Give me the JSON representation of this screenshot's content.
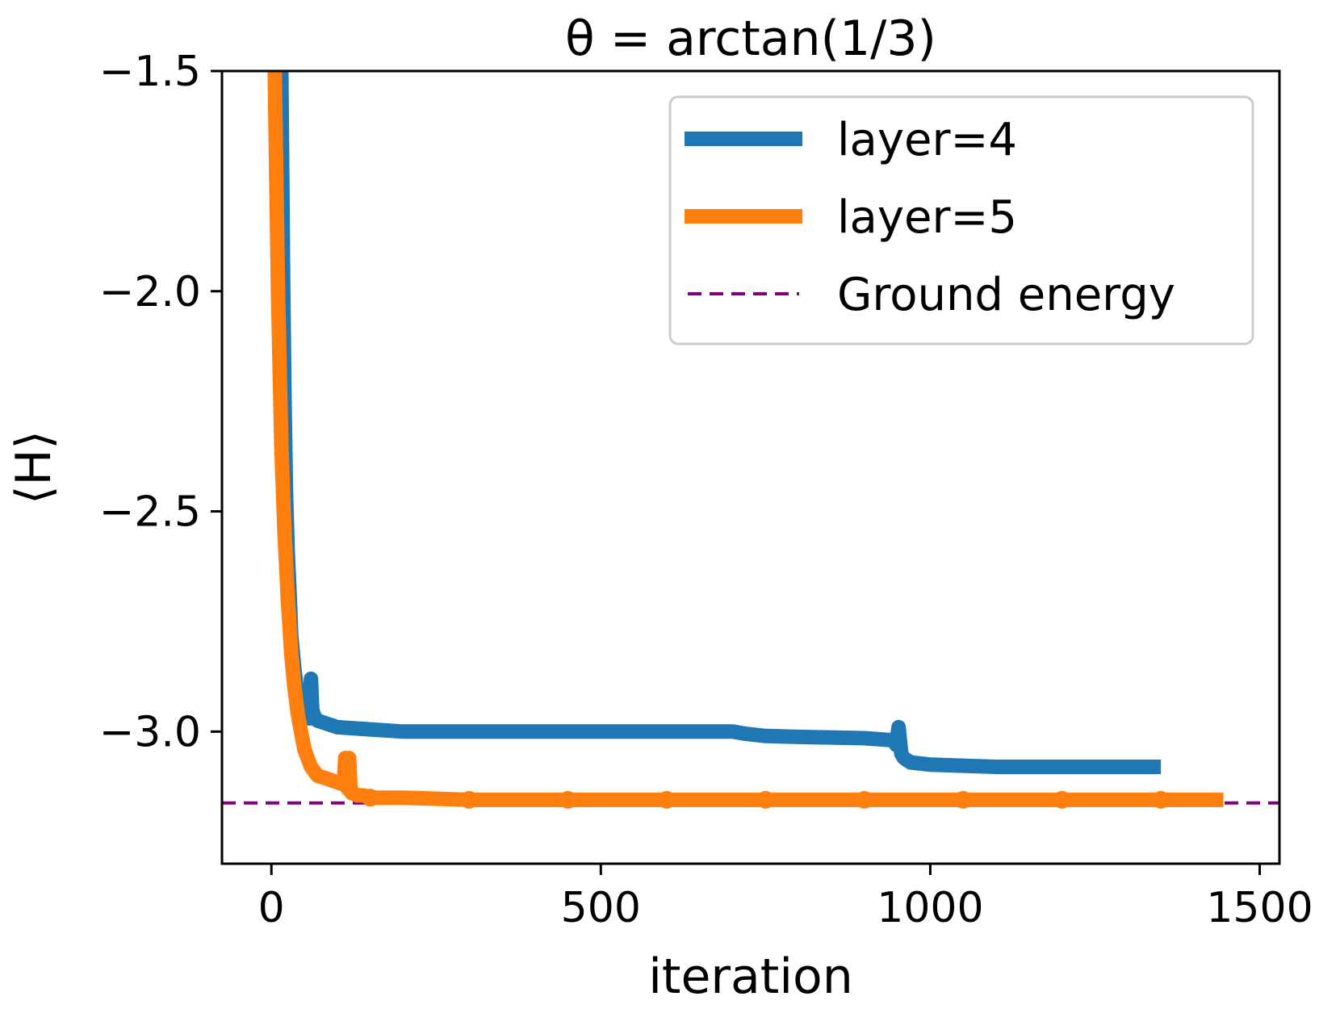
{
  "chart_data": {
    "type": "line",
    "title": "θ = arctan(1/3)",
    "xlabel": "iteration",
    "ylabel": "⟨H⟩",
    "xlim": [
      -75,
      1530
    ],
    "ylim": [
      -3.3,
      -1.5
    ],
    "xticks": [
      0,
      500,
      1000,
      1500
    ],
    "yticks": [
      -1.5,
      -2.0,
      -2.5,
      -3.0
    ],
    "xtick_labels": [
      "0",
      "500",
      "1000",
      "1500"
    ],
    "ytick_labels": [
      "−1.5",
      "−2.0",
      "−2.5",
      "−3.0"
    ],
    "grid": false,
    "legend_position": "top-right",
    "series": [
      {
        "name": "layer=4",
        "label": "layer=4",
        "color": "#1f77b4",
        "style": "solid",
        "x": [
          15,
          18,
          20,
          22,
          25,
          28,
          30,
          35,
          40,
          45,
          50,
          55,
          58,
          60,
          62,
          65,
          70,
          80,
          100,
          150,
          200,
          400,
          700,
          720,
          750,
          800,
          900,
          945,
          948,
          952,
          956,
          960,
          965,
          970,
          1000,
          1100,
          1200,
          1350
        ],
        "y": [
          -1.5,
          -2.0,
          -2.25,
          -2.45,
          -2.6,
          -2.7,
          -2.78,
          -2.86,
          -2.92,
          -2.95,
          -2.96,
          -2.965,
          -2.97,
          -2.88,
          -2.95,
          -2.965,
          -2.975,
          -2.98,
          -2.99,
          -2.995,
          -3.0,
          -3.0,
          -3.0,
          -3.005,
          -3.01,
          -3.012,
          -3.015,
          -3.02,
          -3.03,
          -2.99,
          -3.05,
          -3.06,
          -3.065,
          -3.07,
          -3.075,
          -3.08,
          -3.08,
          -3.08
        ]
      },
      {
        "name": "layer=5",
        "label": "layer=5",
        "color": "#ff7f0e",
        "style": "solid",
        "marker_x": [
          150,
          300,
          450,
          600,
          750,
          900,
          1050,
          1200,
          1350
        ],
        "x": [
          0,
          5,
          10,
          15,
          20,
          25,
          30,
          35,
          40,
          45,
          50,
          60,
          70,
          80,
          90,
          100,
          110,
          112,
          114,
          116,
          118,
          120,
          122,
          125,
          130,
          140,
          150,
          200,
          300,
          450,
          600,
          750,
          900,
          1050,
          1200,
          1350,
          1445
        ],
        "y": [
          -1.5,
          -1.5,
          -2.0,
          -2.35,
          -2.55,
          -2.7,
          -2.82,
          -2.9,
          -2.96,
          -3.0,
          -3.04,
          -3.08,
          -3.1,
          -3.105,
          -3.11,
          -3.115,
          -3.12,
          -3.06,
          -3.12,
          -3.13,
          -3.06,
          -3.13,
          -3.14,
          -3.14,
          -3.145,
          -3.145,
          -3.15,
          -3.15,
          -3.155,
          -3.155,
          -3.155,
          -3.155,
          -3.155,
          -3.155,
          -3.155,
          -3.155,
          -3.155
        ]
      },
      {
        "name": "Ground energy",
        "label": "Ground energy",
        "color": "#800080",
        "style": "dashed",
        "y_value": -3.162
      }
    ]
  }
}
